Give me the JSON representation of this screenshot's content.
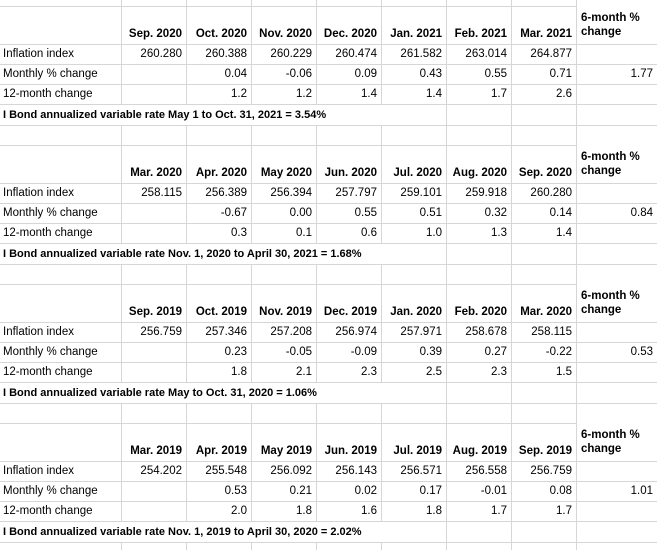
{
  "app": {
    "kind": "spreadsheet-grid"
  },
  "styles": {
    "grid_color": "#d6d6d6",
    "text_color": "#000000",
    "background_color": "#ffffff"
  },
  "six_month_header": {
    "line1": "6-month %",
    "line2": "change"
  },
  "tables": [
    {
      "months": [
        "Sep. 2020",
        "Oct. 2020",
        "Nov. 2020",
        "Dec. 2020",
        "Jan. 2021",
        "Feb. 2021",
        "Mar. 2021"
      ],
      "rows": [
        {
          "label": "Inflation index",
          "values": [
            "260.280",
            "260.388",
            "260.229",
            "260.474",
            "261.582",
            "263.014",
            "264.877"
          ],
          "six_month": ""
        },
        {
          "label": "Monthly % change",
          "values": [
            "",
            "0.04",
            "-0.06",
            "0.09",
            "0.43",
            "0.55",
            "0.71"
          ],
          "six_month": "1.77"
        },
        {
          "label": "12-month change",
          "values": [
            "",
            "1.2",
            "1.2",
            "1.4",
            "1.4",
            "1.7",
            "2.6"
          ],
          "six_month": ""
        }
      ],
      "summary": "I Bond annualized variable rate May 1 to Oct. 31, 2021 = 3.54%"
    },
    {
      "months": [
        "Mar. 2020",
        "Apr. 2020",
        "May 2020",
        "Jun. 2020",
        "Jul. 2020",
        "Aug. 2020",
        "Sep. 2020"
      ],
      "rows": [
        {
          "label": "Inflation index",
          "values": [
            "258.115",
            "256.389",
            "256.394",
            "257.797",
            "259.101",
            "259.918",
            "260.280"
          ],
          "six_month": ""
        },
        {
          "label": "Monthly % change",
          "values": [
            "",
            "-0.67",
            "0.00",
            "0.55",
            "0.51",
            "0.32",
            "0.14"
          ],
          "six_month": "0.84"
        },
        {
          "label": "12-month change",
          "values": [
            "",
            "0.3",
            "0.1",
            "0.6",
            "1.0",
            "1.3",
            "1.4"
          ],
          "six_month": ""
        }
      ],
      "summary": "I Bond annualized variable rate Nov. 1, 2020 to April 30, 2021 = 1.68%"
    },
    {
      "months": [
        "Sep. 2019",
        "Oct. 2019",
        "Nov. 2019",
        "Dec. 2019",
        "Jan. 2020",
        "Feb. 2020",
        "Mar. 2020"
      ],
      "rows": [
        {
          "label": "Inflation index",
          "values": [
            "256.759",
            "257.346",
            "257.208",
            "256.974",
            "257.971",
            "258.678",
            "258.115"
          ],
          "six_month": ""
        },
        {
          "label": "Monthly % change",
          "values": [
            "",
            "0.23",
            "-0.05",
            "-0.09",
            "0.39",
            "0.27",
            "-0.22"
          ],
          "six_month": "0.53"
        },
        {
          "label": "12-month change",
          "values": [
            "",
            "1.8",
            "2.1",
            "2.3",
            "2.5",
            "2.3",
            "1.5"
          ],
          "six_month": ""
        }
      ],
      "summary": "I Bond annualized variable rate May to Oct. 31, 2020 = 1.06%"
    },
    {
      "months": [
        "Mar. 2019",
        "Apr. 2019",
        "May 2019",
        "Jun. 2019",
        "Jul. 2019",
        "Aug. 2019",
        "Sep. 2019"
      ],
      "rows": [
        {
          "label": "Inflation index",
          "values": [
            "254.202",
            "255.548",
            "256.092",
            "256.143",
            "256.571",
            "256.558",
            "256.759"
          ],
          "six_month": ""
        },
        {
          "label": "Monthly % change",
          "values": [
            "",
            "0.53",
            "0.21",
            "0.02",
            "0.17",
            "-0.01",
            "0.08"
          ],
          "six_month": "1.01"
        },
        {
          "label": "12-month change",
          "values": [
            "",
            "2.0",
            "1.8",
            "1.6",
            "1.8",
            "1.7",
            "1.7"
          ],
          "six_month": ""
        }
      ],
      "summary": "I Bond annualized variable rate Nov. 1, 2019 to April 30, 2020 = 2.02%"
    }
  ]
}
